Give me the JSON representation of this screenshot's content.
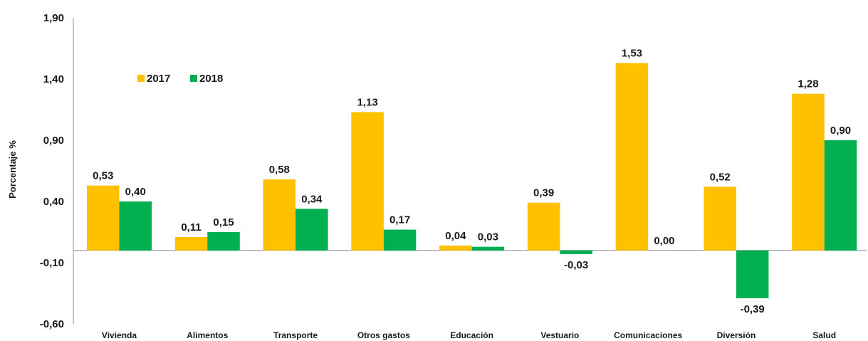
{
  "chart_data": {
    "type": "bar",
    "title": "",
    "xlabel": "",
    "ylabel": "Porcentaje %",
    "ylim": [
      -0.6,
      1.9
    ],
    "yticks": [
      "1,90",
      "1,40",
      "0,90",
      "0,40",
      "-0,10",
      "-0,60"
    ],
    "ytick_values": [
      1.9,
      1.4,
      0.9,
      0.4,
      -0.1,
      -0.6
    ],
    "categories": [
      "Vivienda",
      "Alimentos",
      "Transporte",
      "Otros gastos",
      "Educación",
      "Vestuario",
      "Comunicaciones",
      "Diversión",
      "Salud"
    ],
    "series": [
      {
        "name": "2017",
        "color": "#FFC000",
        "values": [
          0.53,
          0.11,
          0.58,
          1.13,
          0.04,
          0.39,
          1.53,
          0.52,
          1.28
        ],
        "labels": [
          "0,53",
          "0,11",
          "0,58",
          "1,13",
          "0,04",
          "0,39",
          "1,53",
          "0,52",
          "1,28"
        ]
      },
      {
        "name": "2018",
        "color": "#00B050",
        "values": [
          0.4,
          0.15,
          0.34,
          0.17,
          0.03,
          -0.03,
          0.0,
          -0.39,
          0.9
        ],
        "labels": [
          "0,40",
          "0,15",
          "0,34",
          "0,17",
          "0,03",
          "-0,03",
          "0,00",
          "-0,39",
          "0,90"
        ]
      }
    ],
    "grid": false,
    "legend_position": "top-left"
  }
}
